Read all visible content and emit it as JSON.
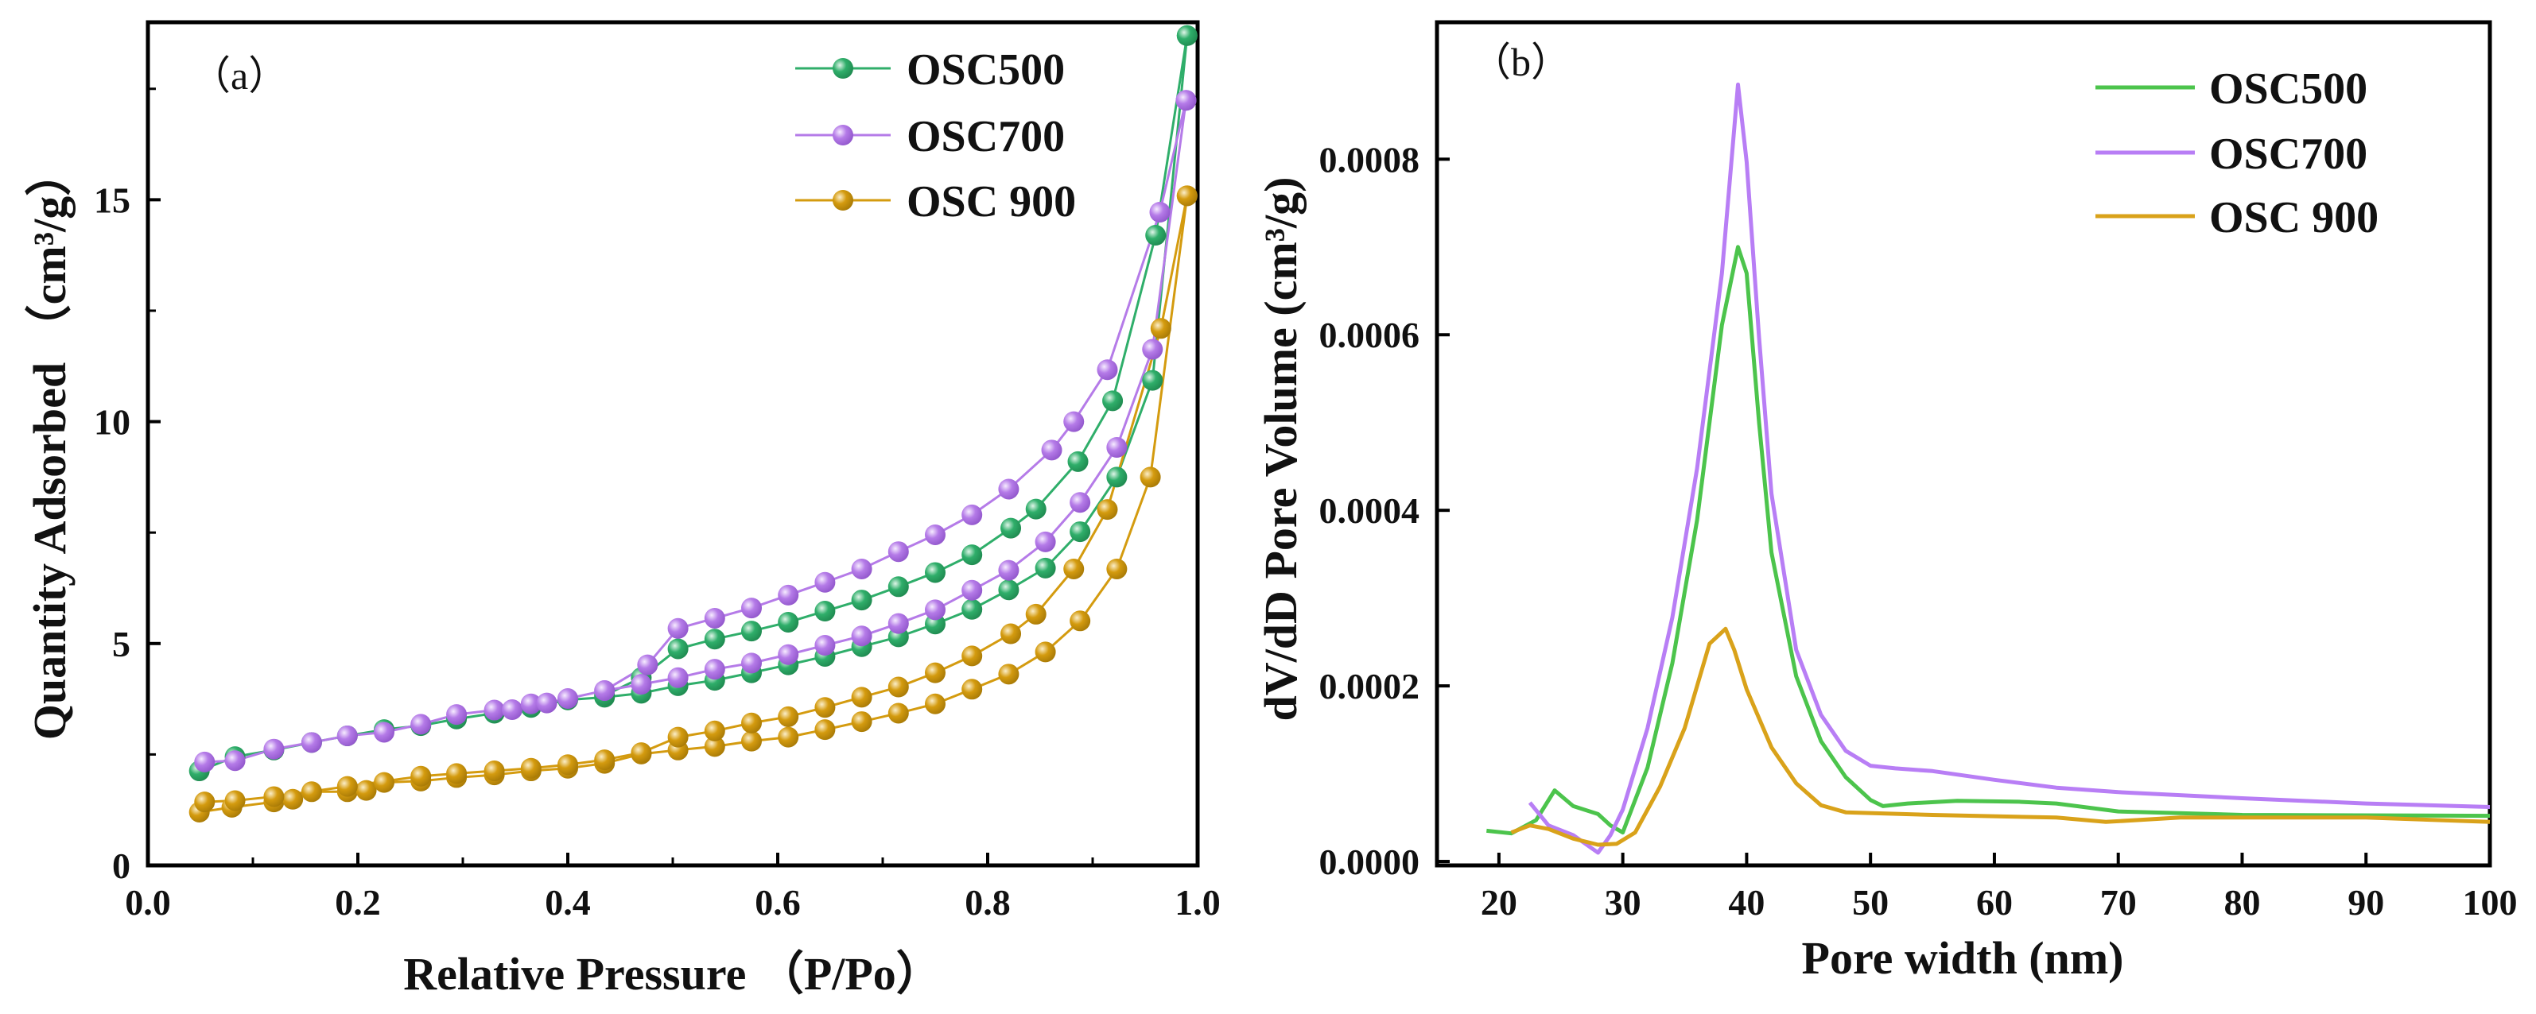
{
  "colors": {
    "osc500_marker": "#2fae6a",
    "osc700_marker": "#b57be8",
    "osc900_marker": "#d49b0f",
    "osc500_line": "#4cc44c",
    "osc700_line": "#b87ef5",
    "osc900_line": "#d9a21a"
  },
  "chart_data": [
    {
      "type": "line",
      "panel_label": "（a）",
      "title": "",
      "xlabel": "Relative Pressure （P/Po）",
      "ylabel": "Quantity Adsorbed （cm³/g）",
      "xlim": [
        0,
        1.0
      ],
      "ylim": [
        0,
        19.0
      ],
      "xticks": [
        0,
        0.2,
        0.4,
        0.6,
        0.8,
        1.0
      ],
      "xtick_labels": [
        "0.0",
        "0.2",
        "0.4",
        "0.6",
        "0.8",
        "1.0"
      ],
      "yticks": [
        0,
        5,
        10,
        15
      ],
      "ytick_labels": [
        "0",
        "5",
        "10",
        "15"
      ],
      "grid": false,
      "legend_position": "top-right",
      "legend": [
        "OSC500",
        "OSC700",
        "OSC 900"
      ],
      "series": [
        {
          "name": "OSC500",
          "branch": "adsorption",
          "x": [
            0.049,
            0.083,
            0.12,
            0.156,
            0.19,
            0.225,
            0.26,
            0.294,
            0.33,
            0.365,
            0.4,
            0.435,
            0.47,
            0.505,
            0.54,
            0.575,
            0.61,
            0.645,
            0.68,
            0.715,
            0.75,
            0.785,
            0.82,
            0.855,
            0.888,
            0.923,
            0.957,
            0.99
          ],
          "y": [
            2.13,
            2.45,
            2.6,
            2.77,
            2.92,
            3.06,
            3.15,
            3.3,
            3.43,
            3.56,
            3.73,
            3.79,
            3.88,
            4.05,
            4.17,
            4.34,
            4.52,
            4.71,
            4.93,
            5.15,
            5.44,
            5.77,
            6.21,
            6.7,
            7.52,
            8.75,
            10.93,
            18.7
          ]
        },
        {
          "name": "OSC500",
          "branch": "desorption",
          "x": [
            0.99,
            0.96,
            0.919,
            0.886,
            0.846,
            0.822,
            0.785,
            0.75,
            0.715,
            0.68,
            0.645,
            0.61,
            0.575,
            0.54,
            0.505,
            0.47,
            0.435
          ],
          "y": [
            18.7,
            14.2,
            10.47,
            9.1,
            8.03,
            7.6,
            7.0,
            6.6,
            6.28,
            5.98,
            5.73,
            5.48,
            5.28,
            5.1,
            4.88,
            4.23,
            3.83
          ]
        },
        {
          "name": "OSC700",
          "branch": "adsorption",
          "x": [
            0.054,
            0.083,
            0.12,
            0.156,
            0.19,
            0.225,
            0.26,
            0.294,
            0.33,
            0.347,
            0.365,
            0.38,
            0.4,
            0.435,
            0.47,
            0.505,
            0.54,
            0.575,
            0.61,
            0.645,
            0.68,
            0.715,
            0.75,
            0.785,
            0.82,
            0.855,
            0.888,
            0.923,
            0.957,
            0.989
          ],
          "y": [
            2.33,
            2.36,
            2.62,
            2.77,
            2.92,
            3.0,
            3.18,
            3.4,
            3.5,
            3.51,
            3.64,
            3.66,
            3.76,
            3.94,
            4.08,
            4.23,
            4.42,
            4.56,
            4.75,
            4.96,
            5.17,
            5.45,
            5.76,
            6.2,
            6.65,
            7.29,
            8.18,
            9.42,
            11.63,
            17.24
          ]
        },
        {
          "name": "OSC700",
          "branch": "desorption",
          "x": [
            0.989,
            0.964,
            0.914,
            0.882,
            0.861,
            0.82,
            0.785,
            0.75,
            0.715,
            0.68,
            0.645,
            0.61,
            0.575,
            0.54,
            0.505,
            0.476,
            0.435
          ],
          "y": [
            17.24,
            14.72,
            11.17,
            10.0,
            9.36,
            8.48,
            7.9,
            7.45,
            7.07,
            6.68,
            6.38,
            6.09,
            5.8,
            5.57,
            5.34,
            4.52,
            3.94
          ]
        },
        {
          "name": "OSC 900",
          "branch": "adsorption",
          "x": [
            0.049,
            0.08,
            0.12,
            0.138,
            0.156,
            0.19,
            0.208,
            0.225,
            0.26,
            0.294,
            0.33,
            0.365,
            0.4,
            0.435,
            0.47,
            0.505,
            0.54,
            0.575,
            0.61,
            0.645,
            0.68,
            0.715,
            0.75,
            0.785,
            0.82,
            0.855,
            0.888,
            0.923,
            0.955,
            0.99
          ],
          "y": [
            1.2,
            1.31,
            1.43,
            1.49,
            1.66,
            1.66,
            1.69,
            1.87,
            1.9,
            1.98,
            2.04,
            2.13,
            2.19,
            2.3,
            2.51,
            2.6,
            2.68,
            2.8,
            2.89,
            3.06,
            3.24,
            3.43,
            3.64,
            3.97,
            4.31,
            4.81,
            5.51,
            6.68,
            8.75,
            15.09
          ]
        },
        {
          "name": "OSC 900",
          "branch": "desorption",
          "x": [
            0.99,
            0.965,
            0.914,
            0.882,
            0.846,
            0.822,
            0.785,
            0.75,
            0.715,
            0.68,
            0.645,
            0.61,
            0.575,
            0.54,
            0.505,
            0.47,
            0.435,
            0.4,
            0.365,
            0.33,
            0.294,
            0.26,
            0.19,
            0.12,
            0.083,
            0.054
          ],
          "y": [
            15.09,
            12.1,
            8.02,
            6.68,
            5.66,
            5.22,
            4.72,
            4.34,
            4.02,
            3.79,
            3.56,
            3.35,
            3.21,
            3.03,
            2.89,
            2.54,
            2.38,
            2.27,
            2.19,
            2.13,
            2.07,
            2.01,
            1.78,
            1.55,
            1.46,
            1.43
          ]
        }
      ]
    },
    {
      "type": "line",
      "panel_label": "（b）",
      "title": "",
      "xlabel": "Pore width (nm)",
      "ylabel": "dV/dD Pore Volume (cm³/g)",
      "xlim": [
        15,
        100
      ],
      "ylim": [
        -4.5e-06,
        0.000956
      ],
      "xticks": [
        20,
        30,
        40,
        50,
        60,
        70,
        80,
        90,
        100
      ],
      "xtick_labels": [
        "20",
        "30",
        "40",
        "50",
        "60",
        "70",
        "80",
        "90",
        "100"
      ],
      "yticks": [
        0,
        0.0002,
        0.0004,
        0.0006,
        0.0008
      ],
      "ytick_labels": [
        "0.0000",
        "0.0002",
        "0.0004",
        "0.0006",
        "0.0008"
      ],
      "grid": false,
      "legend_position": "top-right",
      "legend": [
        "OSC500",
        "OSC700",
        "OSC 900"
      ],
      "series": [
        {
          "name": "OSC500",
          "x": [
            19,
            21,
            23,
            24.5,
            26,
            28,
            29,
            30,
            32,
            34,
            36,
            38,
            39.3,
            40,
            41,
            42,
            44,
            46,
            48,
            50,
            51,
            53,
            57,
            62,
            65,
            70,
            80,
            100
          ],
          "y": [
            3.5e-05,
            3.2e-05,
            4.7e-05,
            8.1e-05,
            6.3e-05,
            5.4e-05,
            4.1e-05,
            3.3e-05,
            0.000107,
            0.000226,
            0.000389,
            0.000611,
            0.0007,
            0.00067,
            0.0005,
            0.000352,
            0.000211,
            0.000137,
            9.6e-05,
            7e-05,
            6.3e-05,
            6.6e-05,
            6.9e-05,
            6.8e-05,
            6.6e-05,
            5.7e-05,
            5.3e-05,
            5.2e-05
          ]
        },
        {
          "name": "OSC700",
          "x": [
            22.5,
            24,
            26,
            28,
            29,
            30,
            32,
            34,
            36,
            38,
            39.3,
            40,
            41,
            42,
            44,
            46,
            48,
            50,
            52,
            55,
            60,
            65,
            70,
            80,
            90,
            100
          ],
          "y": [
            6.7e-05,
            4.1e-05,
            3e-05,
            1e-05,
            3e-05,
            5.9e-05,
            0.000152,
            0.000278,
            0.000448,
            0.00067,
            0.000885,
            0.000797,
            0.000597,
            0.000419,
            0.000241,
            0.000167,
            0.000126,
            0.000109,
            0.000106,
            0.000103,
            9.3e-05,
            8.4e-05,
            7.9e-05,
            7.2e-05,
            6.6e-05,
            6.2e-05
          ]
        },
        {
          "name": "OSC 900",
          "x": [
            21,
            22.5,
            24,
            26,
            28,
            29.5,
            31,
            33,
            35,
            37,
            38.3,
            39,
            40,
            42,
            44,
            46,
            48,
            55,
            65,
            69,
            75,
            90,
            100
          ],
          "y": [
            3.3e-05,
            4.1e-05,
            3.7e-05,
            2.6e-05,
            1.9e-05,
            2e-05,
            3.3e-05,
            8.5e-05,
            0.000152,
            0.000248,
            0.000265,
            0.000241,
            0.000196,
            0.00013,
            8.9e-05,
            6.4e-05,
            5.6e-05,
            5.3e-05,
            5e-05,
            4.5e-05,
            5e-05,
            5e-05,
            4.5e-05
          ]
        }
      ]
    }
  ]
}
